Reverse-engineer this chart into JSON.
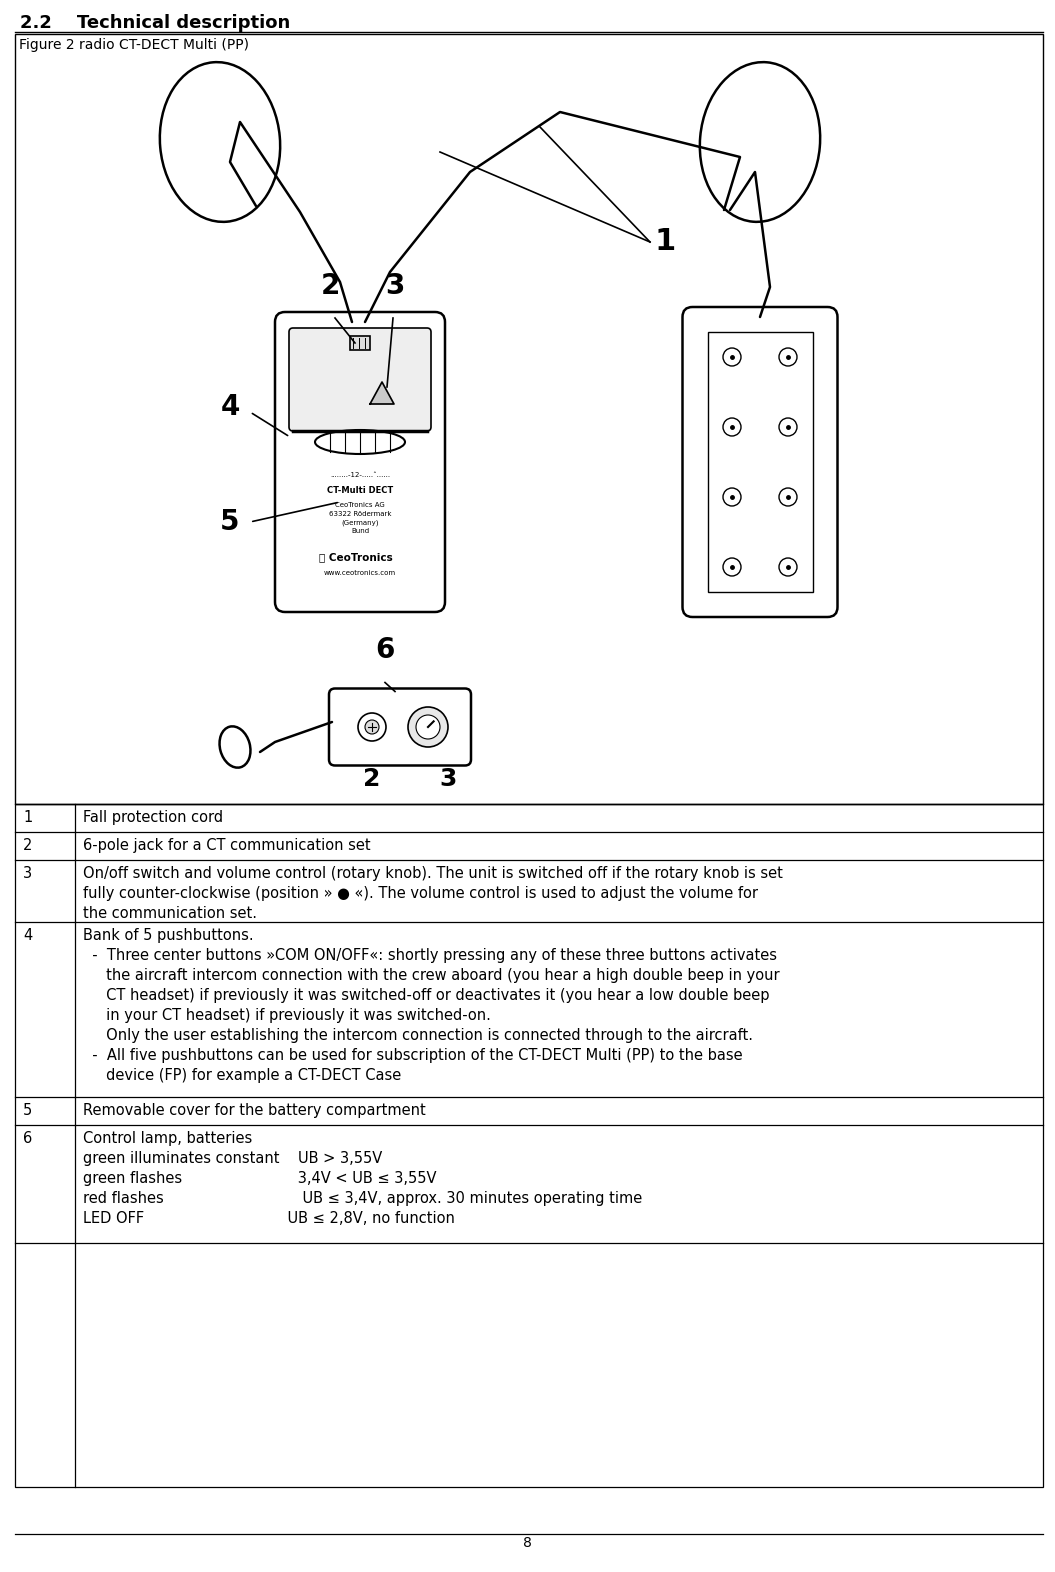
{
  "title": "2.2    Technical description",
  "figure_label": "Figure 2 radio CT-DECT Multi (PP)",
  "page_number": "8",
  "background_color": "#ffffff",
  "rows": [
    {
      "num": "1",
      "text": "Fall protection cord",
      "lines": 1
    },
    {
      "num": "2",
      "text": "6-pole jack for a CT communication set",
      "lines": 1
    },
    {
      "num": "3",
      "text": "On/off switch and volume control (rotary knob). The unit is switched off if the rotary knob is set\nfully counter-clockwise (position » ● «). The volume control is used to adjust the volume for\nthe communication set.",
      "lines": 3
    },
    {
      "num": "4",
      "text": "Bank of 5 pushbuttons.\n  -  Three center buttons »COM ON/OFF«: shortly pressing any of these three buttons activates\n     the aircraft intercom connection with the crew aboard (you hear a high double beep in your\n     CT headset) if previously it was switched-off or deactivates it (you hear a low double beep\n     in your CT headset) if previously it was switched-on.\n     Only the user establishing the intercom connection is connected through to the aircraft.\n  -  All five pushbuttons can be used for subscription of the CT-DECT Multi (PP) to the base\n     device (FP) for example a CT-DECT Case",
      "lines": 8
    },
    {
      "num": "5",
      "text": "Removable cover for the battery compartment",
      "lines": 1
    },
    {
      "num": "6",
      "text": "Control lamp, batteries\ngreen illuminates constant    UB > 3,55V\ngreen flashes                         3,4V < UB ≤ 3,55V\nred flashes                              UB ≤ 3,4V, approx. 30 minutes operating time\nLED OFF                               UB ≤ 2,8V, no function",
      "lines": 5
    }
  ]
}
